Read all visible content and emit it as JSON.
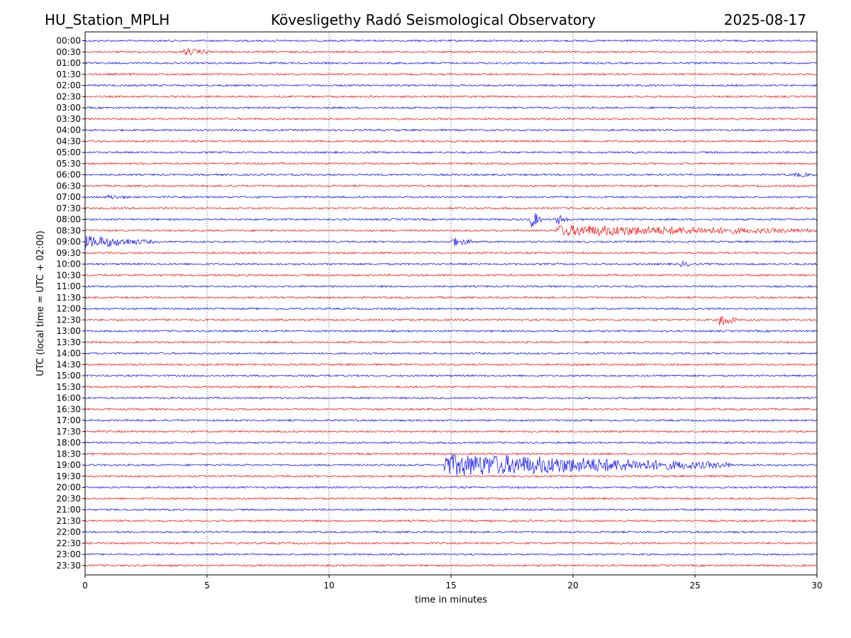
{
  "header": {
    "station": "HU_Station_MPLH",
    "observatory": "Kövesligethy Radó Seismological Observatory",
    "date": "2025-08-17"
  },
  "chart_data": {
    "type": "line",
    "title": "Kövesligethy Radó Seismological Observatory",
    "xlabel": "time in minutes",
    "ylabel": "UTC (local time = UTC + 02:00)",
    "xlim": [
      0,
      30
    ],
    "x_ticks": [
      0,
      5,
      10,
      15,
      20,
      25,
      30
    ],
    "vertical_gridlines_at": [
      5,
      10,
      15,
      20,
      25
    ],
    "trace_colors": [
      "#0000ff",
      "#ff0000"
    ],
    "row_labels": [
      "00:00",
      "00:30",
      "01:00",
      "01:30",
      "02:00",
      "02:30",
      "03:00",
      "03:30",
      "04:00",
      "04:30",
      "05:00",
      "05:30",
      "06:00",
      "06:30",
      "07:00",
      "07:30",
      "08:00",
      "08:30",
      "09:00",
      "09:30",
      "10:00",
      "10:30",
      "11:00",
      "11:30",
      "12:00",
      "12:30",
      "13:00",
      "13:30",
      "14:00",
      "14:30",
      "15:00",
      "15:30",
      "16:00",
      "16:30",
      "17:00",
      "17:30",
      "18:00",
      "18:30",
      "19:00",
      "19:30",
      "20:00",
      "20:30",
      "21:00",
      "21:30",
      "22:00",
      "22:30",
      "23:00",
      "23:30"
    ],
    "events": [
      {
        "row": "00:30",
        "start_min": 4.0,
        "end_min": 5.2,
        "amplitude": 0.55
      },
      {
        "row": "06:00",
        "start_min": 29.0,
        "end_min": 30.0,
        "amplitude": 0.3
      },
      {
        "row": "07:00",
        "start_min": 0.9,
        "end_min": 1.8,
        "amplitude": 0.3
      },
      {
        "row": "08:00",
        "start_min": 18.2,
        "end_min": 18.7,
        "amplitude": 1.8
      },
      {
        "row": "08:00",
        "start_min": 19.3,
        "end_min": 19.8,
        "amplitude": 1.0
      },
      {
        "row": "08:30",
        "start_min": 19.3,
        "end_min": 30.0,
        "amplitude": 0.9
      },
      {
        "row": "09:00",
        "start_min": 0.0,
        "end_min": 2.8,
        "amplitude": 1.0
      },
      {
        "row": "09:00",
        "start_min": 15.0,
        "end_min": 16.0,
        "amplitude": 0.7
      },
      {
        "row": "10:00",
        "start_min": 24.4,
        "end_min": 25.0,
        "amplitude": 0.4
      },
      {
        "row": "12:30",
        "start_min": 26.0,
        "end_min": 26.7,
        "amplitude": 1.2
      },
      {
        "row": "19:00",
        "start_min": 14.7,
        "end_min": 26.5,
        "amplitude": 2.0
      }
    ]
  }
}
